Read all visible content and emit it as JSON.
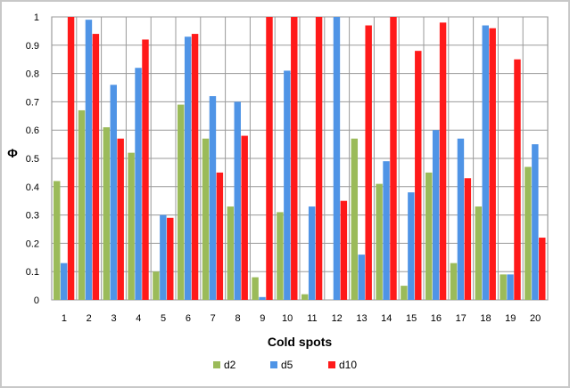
{
  "chart_data": {
    "type": "bar",
    "title": "",
    "xlabel": "Cold spots",
    "ylabel": "Φ",
    "ylim": [
      0,
      1
    ],
    "yticks": [
      "0",
      "0.1",
      "0.2",
      "0.3",
      "0.4",
      "0.5",
      "0.6",
      "0.7",
      "0.8",
      "0.9",
      "1"
    ],
    "grid": true,
    "legend_position": "bottom",
    "categories": [
      "1",
      "2",
      "3",
      "4",
      "5",
      "6",
      "7",
      "8",
      "9",
      "10",
      "11",
      "12",
      "13",
      "14",
      "15",
      "16",
      "17",
      "18",
      "19",
      "20"
    ],
    "series": [
      {
        "name": "d2",
        "color": "#9bbb59",
        "values": [
          0.42,
          0.67,
          0.61,
          0.52,
          0.1,
          0.69,
          0.57,
          0.33,
          0.08,
          0.31,
          0.02,
          0.0,
          0.57,
          0.41,
          0.05,
          0.45,
          0.13,
          0.33,
          0.09,
          0.47
        ]
      },
      {
        "name": "d5",
        "color": "#4f94e6",
        "values": [
          0.13,
          0.99,
          0.76,
          0.82,
          0.3,
          0.93,
          0.72,
          0.7,
          0.01,
          0.81,
          0.33,
          1.0,
          0.16,
          0.49,
          0.38,
          0.6,
          0.57,
          0.97,
          0.09,
          0.55
        ]
      },
      {
        "name": "d10",
        "color": "#ff1a1a",
        "values": [
          1.0,
          0.94,
          0.57,
          0.92,
          0.29,
          0.94,
          0.45,
          0.58,
          1.0,
          1.0,
          1.0,
          0.35,
          0.97,
          1.0,
          0.88,
          0.98,
          0.43,
          0.96,
          0.85,
          0.22
        ]
      }
    ]
  }
}
